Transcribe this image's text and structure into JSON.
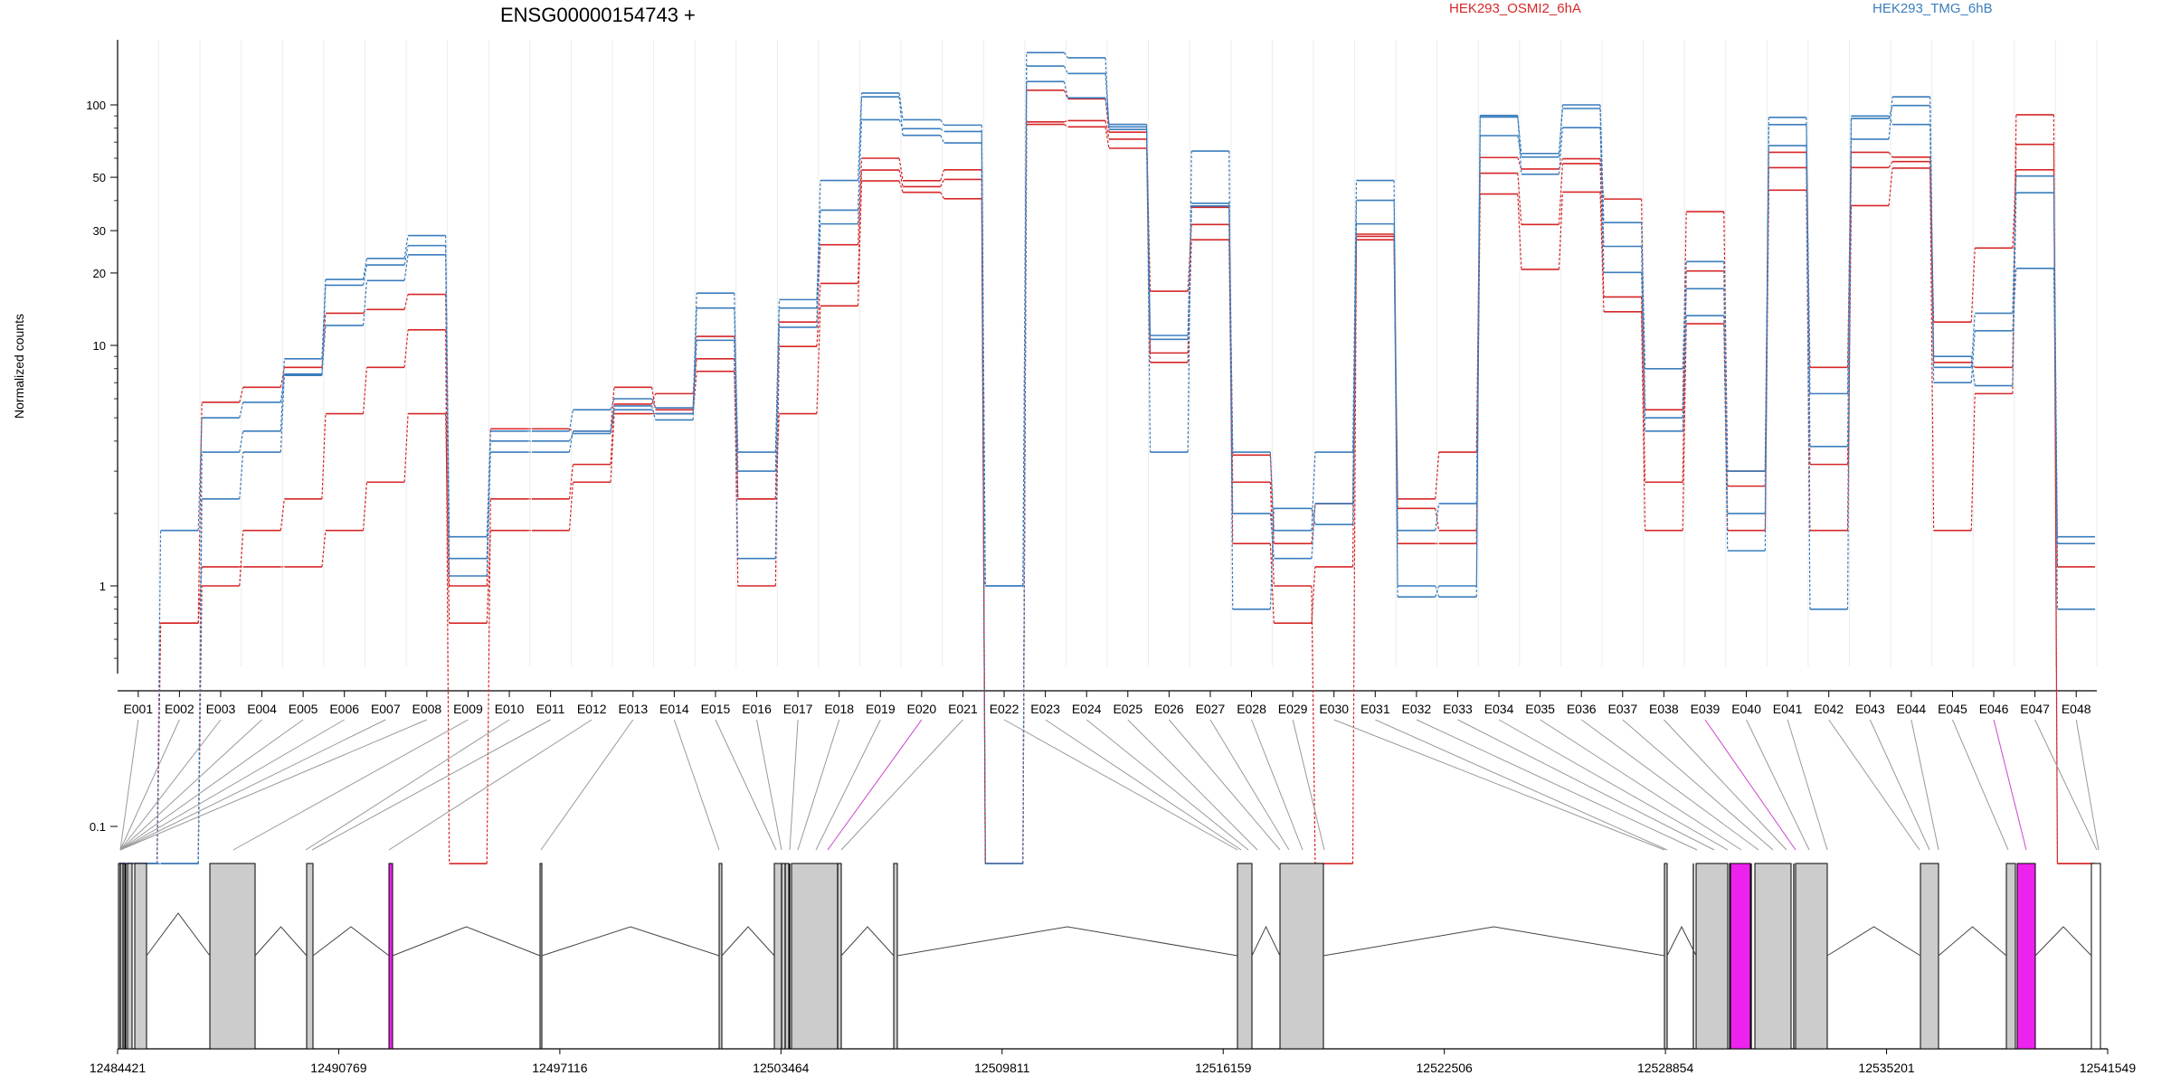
{
  "chart_data": {
    "type": "line",
    "title": "ENSG00000154743 +",
    "ylabel": "Normalized counts",
    "y_scale": "log",
    "y_ticks": [
      "0.1",
      "1",
      "10",
      "20",
      "30",
      "50",
      "100"
    ],
    "categories": [
      "E001",
      "E002",
      "E003",
      "E004",
      "E005",
      "E006",
      "E007",
      "E008",
      "E009",
      "E010",
      "E011",
      "E012",
      "E013",
      "E014",
      "E015",
      "E016",
      "E017",
      "E018",
      "E019",
      "E020",
      "E021",
      "E022",
      "E023",
      "E024",
      "E025",
      "E026",
      "E027",
      "E028",
      "E029",
      "E030",
      "E031",
      "E032",
      "E033",
      "E034",
      "E035",
      "E036",
      "E037",
      "E038",
      "E039",
      "E040",
      "E041",
      "E042",
      "E043",
      "E044",
      "E045",
      "E046",
      "E047",
      "E048"
    ],
    "legend": [
      {
        "name": "HEK293_OSMI2_6hA",
        "color": "#d62728"
      },
      {
        "name": "HEK293_TMG_6hB",
        "color": "#3a7dbd"
      }
    ],
    "series": [
      {
        "name": "HEK293_OSMI2_6hA",
        "color": "#d62728",
        "values": [
          0.07,
          0.7,
          5.8,
          6.7,
          8.1,
          13.6,
          14.1,
          16.3,
          1.0,
          4.5,
          4.5,
          4.4,
          6.7,
          5.4,
          10.9,
          2.3,
          12.5,
          26.2,
          60.0,
          48.4,
          53.7,
          0.07,
          115,
          106,
          77,
          9.3,
          37.5,
          3.5,
          1.5,
          2.2,
          28.4,
          2.3,
          3.6,
          60.4,
          54.1,
          59.7,
          40.6,
          5.4,
          36.0,
          3.0,
          63.5,
          8.1,
          63.5,
          60.6,
          12.5,
          25.4,
          53.7,
          1.2
        ]
      },
      {
        "name": "HEK293_OSMI2_6hA",
        "color": "#d62728",
        "values": [
          0.07,
          0.7,
          1.2,
          1.2,
          1.2,
          1.7,
          2.7,
          5.2,
          0.7,
          1.7,
          1.7,
          2.7,
          5.2,
          5.2,
          7.8,
          2.3,
          5.2,
          14.6,
          48.3,
          43.3,
          40.7,
          0.07,
          83,
          81,
          66,
          8.5,
          27.5,
          1.5,
          0.7,
          1.2,
          27.5,
          1.5,
          1.5,
          42.6,
          20.7,
          43.4,
          13.8,
          1.7,
          12.3,
          1.7,
          44.2,
          1.7,
          38.1,
          54.6,
          1.7,
          6.3,
          91.0,
          0.07
        ]
      },
      {
        "name": "HEK293_OSMI2_6hA",
        "color": "#d62728",
        "values": [
          0.07,
          0.07,
          1.0,
          1.7,
          2.3,
          5.2,
          8.1,
          11.6,
          0.07,
          2.3,
          2.3,
          3.2,
          5.7,
          6.3,
          8.8,
          1.0,
          9.9,
          18.1,
          53.6,
          45.7,
          49.0,
          0.07,
          85,
          86,
          72,
          16.8,
          31.8,
          2.7,
          1.0,
          0.07,
          29.0,
          2.1,
          1.7,
          52.0,
          31.8,
          57.0,
          15.9,
          2.7,
          20.4,
          2.6,
          54.8,
          3.2,
          54.9,
          58.1,
          8.5,
          8.1,
          68.5,
          0.07
        ]
      },
      {
        "name": "HEK293_TMG_6hB",
        "color": "#3a7dbd",
        "values": [
          0.07,
          1.7,
          5.0,
          5.8,
          7.6,
          12.1,
          18.6,
          23.8,
          1.1,
          3.6,
          3.6,
          4.4,
          5.4,
          5.2,
          10.5,
          1.3,
          11.9,
          32.0,
          108,
          74.7,
          69.5,
          1.0,
          165,
          157,
          79,
          10.6,
          39.0,
          3.6,
          1.7,
          3.6,
          48.5,
          1.0,
          0.9,
          90.4,
          51.5,
          80.4,
          25.8,
          4.4,
          13.3,
          1.4,
          82.8,
          6.3,
          87.8,
          99.4,
          8.1,
          13.6,
          50.6,
          0.8
        ]
      },
      {
        "name": "HEK293_TMG_6hB",
        "color": "#3a7dbd",
        "values": [
          0.07,
          0.07,
          2.3,
          3.6,
          7.5,
          17.8,
          21.6,
          26.0,
          1.3,
          4.0,
          4.0,
          4.3,
          5.6,
          4.9,
          14.3,
          3.6,
          14.3,
          48.5,
          112,
          86.7,
          82.4,
          1.0,
          145,
          135,
          81,
          11.0,
          38.0,
          2.0,
          1.3,
          2.2,
          40.1,
          1.7,
          2.2,
          89.0,
          62.8,
          96.6,
          20.1,
          5.0,
          17.2,
          2.0,
          88.7,
          3.8,
          72.0,
          108,
          9.0,
          6.8,
          43.1,
          1.5
        ]
      },
      {
        "name": "HEK293_TMG_6hB",
        "color": "#3a7dbd",
        "values": [
          0.07,
          0.07,
          3.6,
          4.4,
          8.8,
          18.8,
          23.0,
          28.6,
          1.6,
          4.4,
          4.4,
          5.4,
          6.0,
          5.5,
          16.5,
          3.0,
          15.5,
          36.5,
          86.7,
          79.6,
          77.5,
          0.07,
          125,
          107,
          83,
          3.6,
          64.3,
          0.8,
          2.1,
          1.8,
          32.0,
          0.9,
          1.0,
          74.5,
          60.7,
          100,
          32.4,
          8.0,
          22.3,
          3.0,
          67.7,
          0.8,
          89.9,
          82.9,
          7.0,
          11.5,
          20.9,
          1.6
        ]
      }
    ]
  },
  "gene_model": {
    "coordinates": [
      "12484421",
      "12490769",
      "12497116",
      "12503464",
      "12509811",
      "12516159",
      "12522506",
      "12528854",
      "12535201",
      "12541549"
    ],
    "highlight_color": "#ee22ee",
    "exon_color": "#cccccc"
  }
}
